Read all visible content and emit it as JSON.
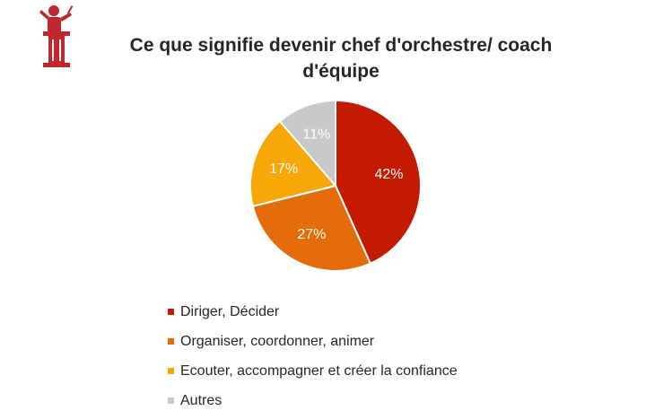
{
  "chart_data": {
    "type": "pie",
    "title": "Ce que signifie devenir chef d'orchestre/ coach d'équipe",
    "slices": [
      {
        "label": "Diriger, Décider",
        "value": 42,
        "display": "42%",
        "color": "#C41A00"
      },
      {
        "label": "Organiser, coordonner, animer",
        "value": 27,
        "display": "27%",
        "color": "#E46C0A"
      },
      {
        "label": "Ecouter, accompagner et créer la confiance",
        "value": 17,
        "display": "17%",
        "color": "#F7A707"
      },
      {
        "label": "Autres",
        "value": 11,
        "display": "11%",
        "color": "#C8C8C8"
      }
    ],
    "legend_position": "bottom",
    "grid": false
  },
  "icons": {
    "header": "conductor-icon",
    "icon_color": "#C0262B"
  }
}
